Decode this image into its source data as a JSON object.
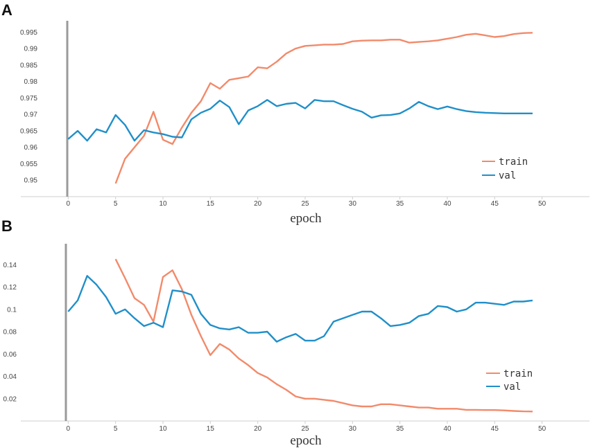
{
  "chart_data": [
    {
      "panel": "A",
      "type": "line",
      "xlabel": "epoch",
      "ylabel": "",
      "xlim": [
        -5,
        55
      ],
      "ylim": [
        0.945,
        0.9995
      ],
      "xticks": [
        "0",
        "5",
        "10",
        "15",
        "20",
        "25",
        "30",
        "35",
        "40",
        "45",
        "50"
      ],
      "yticks": [
        "0.95",
        "0.955",
        "0.96",
        "0.965",
        "0.97",
        "0.975",
        "0.98",
        "0.985",
        "0.99",
        "0.995"
      ],
      "legend_position": "bottom-right",
      "grid": false,
      "series": [
        {
          "name": "train",
          "color": "#f28a6a",
          "x": [
            5,
            6,
            7,
            8,
            9,
            10,
            11,
            12,
            13,
            14,
            15,
            16,
            17,
            18,
            19,
            20,
            21,
            22,
            23,
            24,
            25,
            26,
            27,
            28,
            29,
            30,
            31,
            32,
            33,
            34,
            35,
            36,
            37,
            38,
            39,
            40,
            41,
            42,
            43,
            44,
            45,
            46,
            47,
            48,
            49
          ],
          "values": [
            0.949,
            0.9565,
            0.96,
            0.9635,
            0.9708,
            0.9623,
            0.961,
            0.966,
            0.9705,
            0.974,
            0.9795,
            0.9778,
            0.9805,
            0.981,
            0.9815,
            0.9843,
            0.984,
            0.986,
            0.9885,
            0.99,
            0.9908,
            0.991,
            0.9912,
            0.9912,
            0.9914,
            0.9922,
            0.9924,
            0.9925,
            0.9925,
            0.9927,
            0.9927,
            0.9918,
            0.992,
            0.9922,
            0.9925,
            0.993,
            0.9935,
            0.9942,
            0.9945,
            0.994,
            0.9935,
            0.9938,
            0.9944,
            0.9947,
            0.9948
          ]
        },
        {
          "name": "val",
          "color": "#1f8fc9",
          "x": [
            0,
            1,
            2,
            3,
            4,
            5,
            6,
            7,
            8,
            9,
            10,
            11,
            12,
            13,
            14,
            15,
            16,
            17,
            18,
            19,
            20,
            21,
            22,
            23,
            24,
            25,
            26,
            27,
            28,
            29,
            30,
            31,
            32,
            33,
            34,
            35,
            36,
            37,
            38,
            39,
            40,
            41,
            42,
            43,
            44,
            45,
            46,
            47,
            48,
            49
          ],
          "values": [
            0.9625,
            0.965,
            0.962,
            0.9655,
            0.9645,
            0.9698,
            0.9668,
            0.962,
            0.9652,
            0.9645,
            0.964,
            0.9632,
            0.963,
            0.9685,
            0.9705,
            0.9717,
            0.9742,
            0.9722,
            0.967,
            0.9712,
            0.9725,
            0.9744,
            0.9725,
            0.9732,
            0.9735,
            0.9718,
            0.9744,
            0.974,
            0.974,
            0.9728,
            0.9717,
            0.9708,
            0.969,
            0.9697,
            0.9698,
            0.9703,
            0.9718,
            0.9738,
            0.9725,
            0.9716,
            0.9724,
            0.9716,
            0.971,
            0.9707,
            0.9705,
            0.9704,
            0.9703,
            0.9703,
            0.9703,
            0.9703
          ]
        }
      ]
    },
    {
      "panel": "B",
      "type": "line",
      "xlabel": "epoch",
      "ylabel": "",
      "xlim": [
        -5,
        55
      ],
      "ylim": [
        0.0,
        0.16
      ],
      "xticks": [
        "0",
        "5",
        "10",
        "15",
        "20",
        "25",
        "30",
        "35",
        "40",
        "45",
        "50"
      ],
      "yticks": [
        "0.02",
        "0.04",
        "0.06",
        "0.08",
        "0.1",
        "0.12",
        "0.14"
      ],
      "legend_position": "bottom-right",
      "grid": false,
      "series": [
        {
          "name": "train",
          "color": "#f28a6a",
          "x": [
            5,
            6,
            7,
            8,
            9,
            10,
            11,
            12,
            13,
            14,
            15,
            16,
            17,
            18,
            19,
            20,
            21,
            22,
            23,
            24,
            25,
            26,
            27,
            28,
            29,
            30,
            31,
            32,
            33,
            34,
            35,
            36,
            37,
            38,
            39,
            40,
            41,
            42,
            43,
            44,
            45,
            46,
            47,
            48,
            49
          ],
          "values": [
            0.145,
            0.128,
            0.11,
            0.104,
            0.089,
            0.129,
            0.135,
            0.118,
            0.095,
            0.076,
            0.059,
            0.069,
            0.064,
            0.056,
            0.05,
            0.043,
            0.039,
            0.033,
            0.028,
            0.022,
            0.02,
            0.02,
            0.019,
            0.018,
            0.016,
            0.014,
            0.013,
            0.013,
            0.015,
            0.015,
            0.014,
            0.013,
            0.012,
            0.012,
            0.011,
            0.011,
            0.011,
            0.01,
            0.01,
            0.0098,
            0.0098,
            0.0095,
            0.009,
            0.0086,
            0.0085
          ]
        },
        {
          "name": "val",
          "color": "#1f8fc9",
          "x": [
            0,
            1,
            2,
            3,
            4,
            5,
            6,
            7,
            8,
            9,
            10,
            11,
            12,
            13,
            14,
            15,
            16,
            17,
            18,
            19,
            20,
            21,
            22,
            23,
            24,
            25,
            26,
            27,
            28,
            29,
            30,
            31,
            32,
            33,
            34,
            35,
            36,
            37,
            38,
            39,
            40,
            41,
            42,
            43,
            44,
            45,
            46,
            47,
            48,
            49
          ],
          "values": [
            0.098,
            0.108,
            0.13,
            0.122,
            0.111,
            0.096,
            0.1,
            0.092,
            0.085,
            0.088,
            0.084,
            0.117,
            0.116,
            0.113,
            0.096,
            0.086,
            0.083,
            0.082,
            0.084,
            0.079,
            0.079,
            0.08,
            0.071,
            0.075,
            0.078,
            0.072,
            0.072,
            0.076,
            0.089,
            0.092,
            0.095,
            0.098,
            0.098,
            0.092,
            0.085,
            0.086,
            0.088,
            0.094,
            0.096,
            0.103,
            0.102,
            0.098,
            0.1,
            0.106,
            0.106,
            0.105,
            0.104,
            0.107,
            0.107,
            0.108
          ]
        }
      ]
    }
  ]
}
